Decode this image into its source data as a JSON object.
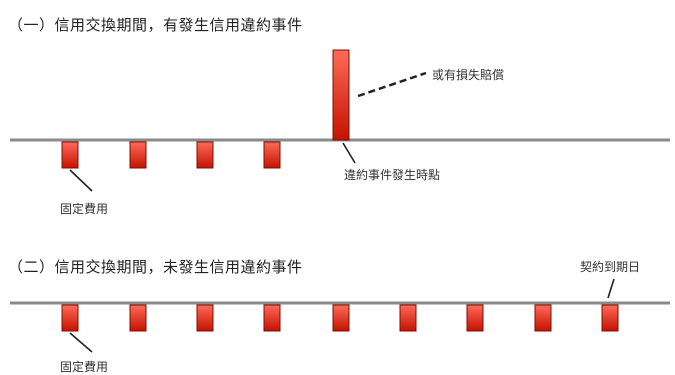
{
  "scenario1": {
    "heading": "（一）信用交換期間，有發生信用違約事件",
    "payment_label": "固定費用",
    "default_label": "違約事件發生時點",
    "compensation_label": "或有損失賠償"
  },
  "scenario2": {
    "heading": "（二）信用交換期間，未發生信用違約事件",
    "payment_label": "固定費用",
    "maturity_label": "契約到期日"
  },
  "colors": {
    "bar_top": "#ff5a4a",
    "bar_bottom": "#c41200",
    "bar_border": "#7a1000",
    "timeline": "#888888"
  }
}
